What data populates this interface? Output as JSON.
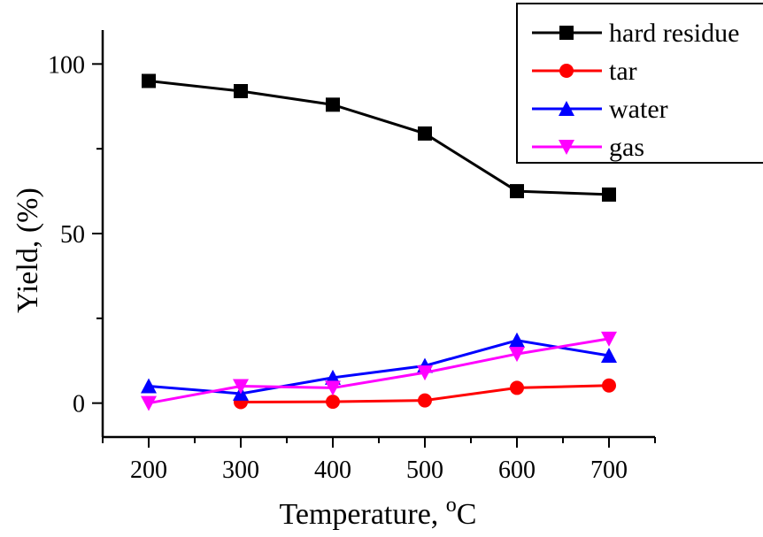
{
  "chart_data": {
    "type": "line",
    "x": [
      200,
      300,
      400,
      500,
      600,
      700
    ],
    "xlim": [
      150,
      750
    ],
    "ylim": [
      -10,
      110
    ],
    "xticks": [
      "200",
      "300",
      "400",
      "500",
      "600",
      "700"
    ],
    "yticks": [
      "0",
      "50",
      "100"
    ],
    "xlabel": "Temperature, ",
    "xlabel_sup": "o",
    "xlabel_unit": "C",
    "ylabel": "Yield, (%)",
    "legend_position": "top-right",
    "grid": false,
    "series": [
      {
        "name": "hard residue",
        "color": "#000000",
        "marker": "square",
        "x": [
          200,
          300,
          400,
          500,
          600,
          700
        ],
        "values": [
          95,
          92,
          88,
          79.5,
          62.5,
          61.5
        ]
      },
      {
        "name": "tar",
        "color": "#ff0000",
        "marker": "circle",
        "x": [
          300,
          400,
          500,
          600,
          700
        ],
        "values": [
          0.3,
          0.4,
          0.8,
          4.5,
          5.2
        ]
      },
      {
        "name": "water",
        "color": "#0000ff",
        "marker": "triangle-up",
        "x": [
          200,
          300,
          400,
          500,
          600,
          700
        ],
        "values": [
          5,
          2.8,
          7.5,
          11,
          18.5,
          14
        ]
      },
      {
        "name": "gas",
        "color": "#ff00ff",
        "marker": "triangle-down",
        "x": [
          200,
          300,
          400,
          500,
          600,
          700
        ],
        "values": [
          0,
          5,
          4.5,
          9,
          14.5,
          19
        ]
      }
    ]
  }
}
